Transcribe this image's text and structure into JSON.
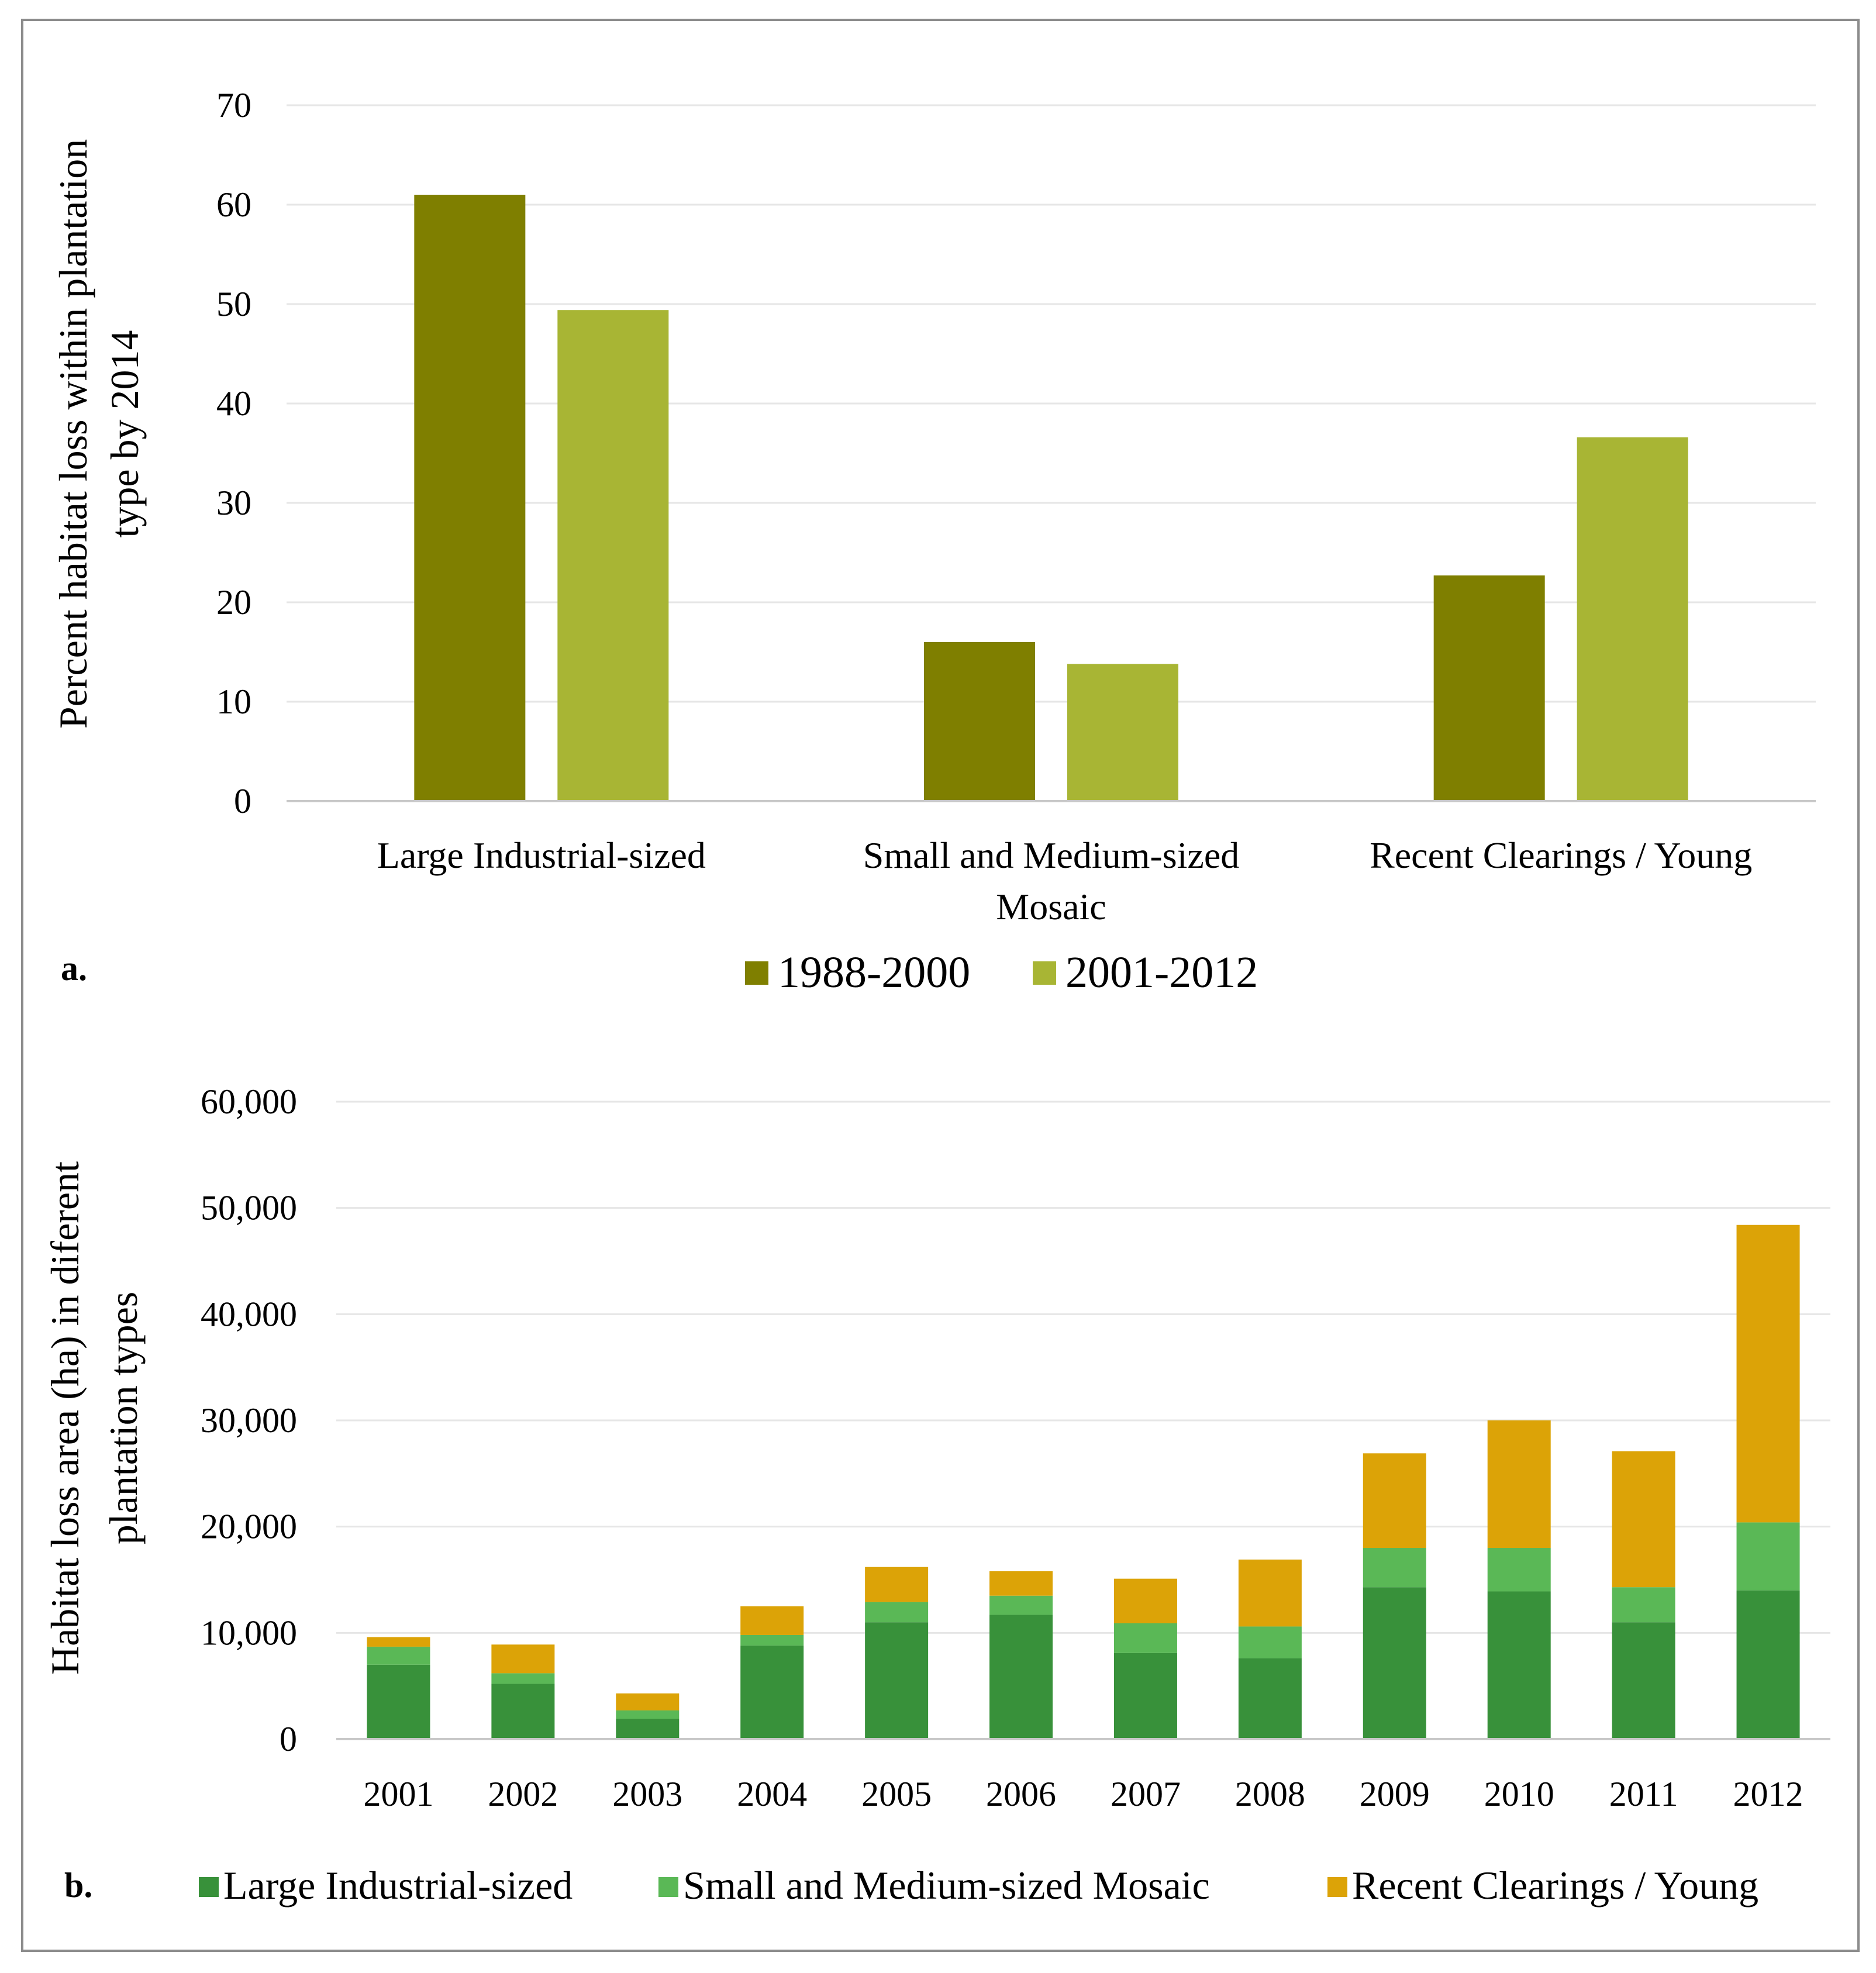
{
  "colors": {
    "dark_olive": "#7f7f00",
    "light_olive": "#a8b534",
    "dark_green": "#38913a",
    "light_green": "#5ab856",
    "orange": "#dca307",
    "grid": "#e6e6e6",
    "axis": "#c8c8c8",
    "frame": "#8c8c8c"
  },
  "chart_data": [
    {
      "panel_label": "a.",
      "type": "bar",
      "categories": [
        [
          "Large Industrial-sized"
        ],
        [
          "Small and Medium-sized",
          "Mosaic"
        ],
        [
          "Recent Clearings / Young"
        ]
      ],
      "series": [
        {
          "name": "1988-2000",
          "values": [
            61,
            16,
            22.7
          ]
        },
        {
          "name": "2001-2012",
          "values": [
            49.4,
            13.8,
            36.6
          ]
        }
      ],
      "ylabel": [
        "Percent habitat loss within  plantation",
        "type by 2014"
      ],
      "xlabel": "",
      "ylim": [
        0,
        70
      ],
      "yticks": [
        "0",
        "10",
        "20",
        "30",
        "40",
        "50",
        "60",
        "70"
      ],
      "grid": true,
      "legend_position": "bottom"
    },
    {
      "panel_label": "b.",
      "type": "bar",
      "stacked": true,
      "categories": [
        "2001",
        "2002",
        "2003",
        "2004",
        "2005",
        "2006",
        "2007",
        "2008",
        "2009",
        "2010",
        "2011",
        "2012"
      ],
      "series": [
        {
          "name": "Large Industrial-sized",
          "values": [
            7000,
            5200,
            1900,
            8800,
            11000,
            11700,
            8100,
            7600,
            14300,
            13900,
            11000,
            14000
          ]
        },
        {
          "name": "Small and Medium-sized Mosaic",
          "values": [
            1700,
            1000,
            800,
            1000,
            1900,
            1800,
            2800,
            3000,
            3700,
            4100,
            3300,
            6400
          ]
        },
        {
          "name": "Recent Clearings / Young",
          "values": [
            900,
            2700,
            1600,
            2700,
            3300,
            2300,
            4200,
            6300,
            8900,
            12000,
            12800,
            28000
          ]
        }
      ],
      "ylabel": [
        "Habitat loss area (ha) in diferent",
        "plantation types"
      ],
      "xlabel": "",
      "ylim": [
        0,
        60000
      ],
      "yticks": [
        "0",
        "10,000",
        "20,000",
        "30,000",
        "40,000",
        "50,000",
        "60,000"
      ],
      "grid": true,
      "legend_position": "bottom"
    }
  ]
}
